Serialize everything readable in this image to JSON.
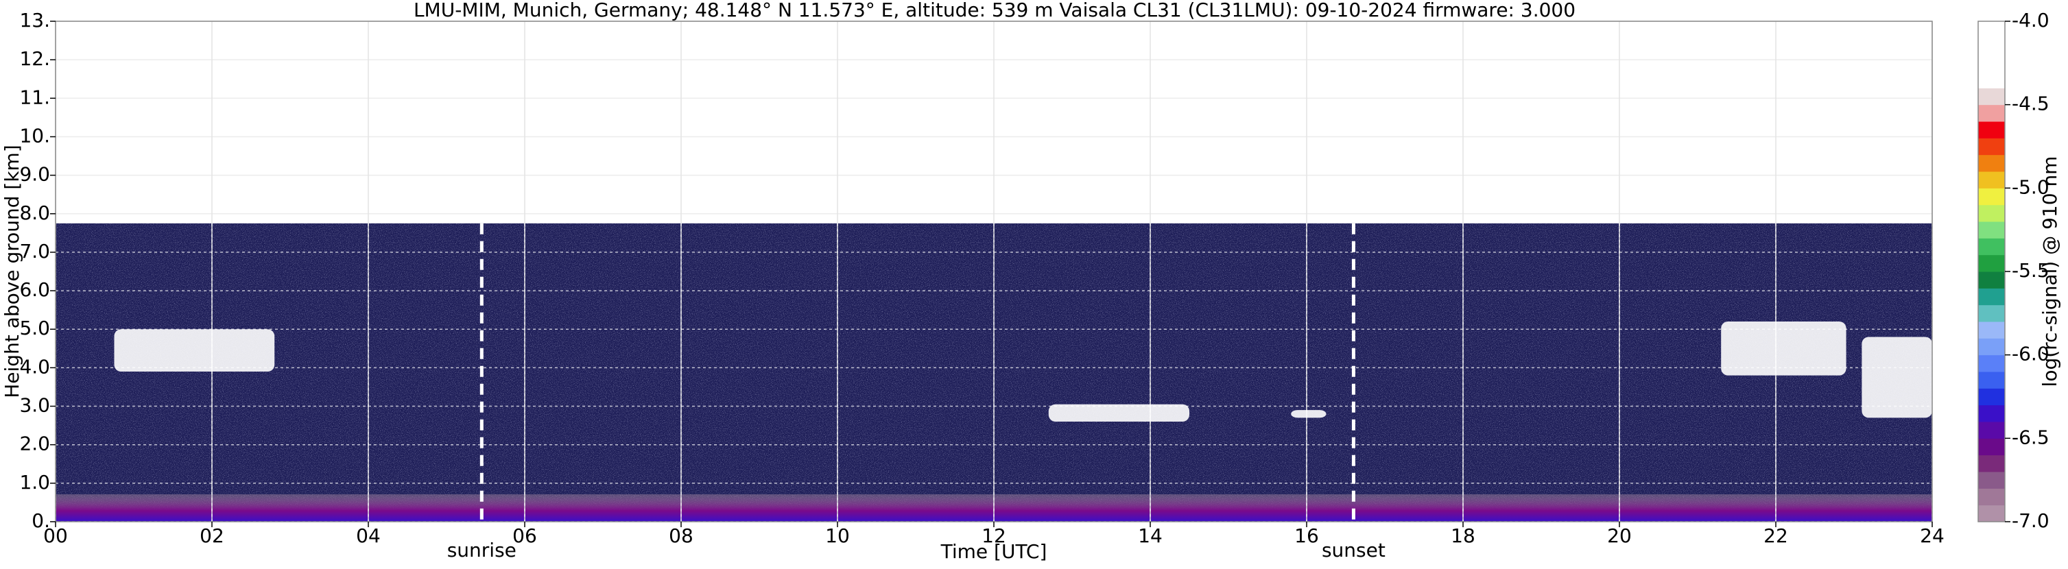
{
  "chart_data": {
    "type": "ceilometer",
    "title": "LMU-MIM, Munich, Germany; 48.148° N 11.573° E, altitude: 539 m    Vaisala CL31 (CL31LMU): 09-10-2024    firmware: 3.000",
    "x_label": "Time [UTC]",
    "y_label": "Height above ground [km]",
    "xlim": [
      0,
      24
    ],
    "xticks": [
      {
        "value": 0,
        "label": "00"
      },
      {
        "value": 2,
        "label": "02"
      },
      {
        "value": 4,
        "label": "04"
      },
      {
        "value": 6,
        "label": "06"
      },
      {
        "value": 8,
        "label": "08"
      },
      10,
      12,
      14,
      16,
      18,
      20,
      22,
      24
    ],
    "ylim": [
      0,
      13
    ],
    "yticks": [
      {
        "value": 0,
        "label": "0."
      },
      {
        "value": 1,
        "label": "1.0"
      },
      {
        "value": 2,
        "label": "2.0"
      },
      {
        "value": 3,
        "label": "3.0"
      },
      {
        "value": 4,
        "label": "4.0"
      },
      {
        "value": 5,
        "label": "5.0"
      },
      {
        "value": 6,
        "label": "6.0"
      },
      {
        "value": 7,
        "label": "7.0"
      },
      {
        "value": 8,
        "label": "8.0"
      },
      {
        "value": 9,
        "label": "9.0"
      },
      {
        "value": 10,
        "label": "10."
      },
      {
        "value": 11,
        "label": "11."
      },
      {
        "value": 12,
        "label": "12."
      },
      {
        "value": 13,
        "label": "13."
      }
    ],
    "grid": true,
    "signal_top": 7.75,
    "cloud_layers": [
      {
        "start": 0.75,
        "end": 2.8,
        "base": 3.9,
        "top": 5.0
      },
      {
        "start": 12.7,
        "end": 14.5,
        "base": 2.6,
        "top": 3.05
      },
      {
        "start": 15.8,
        "end": 16.25,
        "base": 2.7,
        "top": 2.9
      },
      {
        "start": 21.3,
        "end": 22.9,
        "base": 3.8,
        "top": 5.2
      },
      {
        "start": 23.1,
        "end": 24,
        "base": 2.7,
        "top": 4.8
      }
    ],
    "sun_events": [
      {
        "label": "sunrise",
        "time": 5.45
      },
      {
        "label": "sunset",
        "time": 16.6
      }
    ],
    "colorbar": {
      "label": "log(rc-signal) @ 910 nm",
      "lim": [
        -7,
        -4
      ],
      "ticks": [
        {
          "value": -4,
          "label": "-4.0"
        },
        -4.5,
        {
          "value": -5,
          "label": "-5.0"
        },
        -5.5,
        {
          "value": -6,
          "label": "-6.0"
        },
        -6.5,
        {
          "value": -7,
          "label": "-7.0"
        }
      ],
      "colors": [
        "#b091a8",
        "#a07898",
        "#8a5a8a",
        "#7a2a7a",
        "#6a0a8a",
        "#5a0aa8",
        "#3a10c8",
        "#2030e0",
        "#3a60f0",
        "#5a80f8",
        "#7aa0f8",
        "#9ab8f8",
        "#60c0c0",
        "#20a090",
        "#108040",
        "#20a040",
        "#40c060",
        "#80e080",
        "#c0f060",
        "#f0f040",
        "#f0c020",
        "#f08010",
        "#f04010",
        "#f00010",
        "#f0a0a0",
        "#e8d8d8",
        "#ffffff",
        "#ffffff",
        "#ffffff",
        "#ffffff"
      ]
    }
  }
}
